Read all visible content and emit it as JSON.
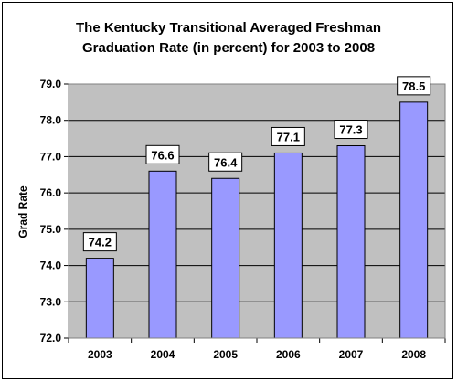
{
  "chart_data": {
    "type": "bar",
    "title_line1": "The Kentucky Transitional Averaged Freshman",
    "title_line2": "Graduation Rate (in percent) for 2003 to 2008",
    "ylabel": "Grad Rate",
    "categories": [
      "2003",
      "2004",
      "2005",
      "2006",
      "2007",
      "2008"
    ],
    "values": [
      74.2,
      76.6,
      76.4,
      77.1,
      77.3,
      78.5
    ],
    "value_labels": [
      "74.2",
      "76.6",
      "76.4",
      "77.1",
      "77.3",
      "78.5"
    ],
    "ylim": [
      72.0,
      79.0
    ],
    "yticks": [
      "72.0",
      "73.0",
      "74.0",
      "75.0",
      "76.0",
      "77.0",
      "78.0",
      "79.0"
    ],
    "grid": true,
    "legend": "none",
    "colors": {
      "bar": "#9999ff",
      "plot_bg": "#c0c0c0",
      "bar_edge": "#000000"
    }
  }
}
